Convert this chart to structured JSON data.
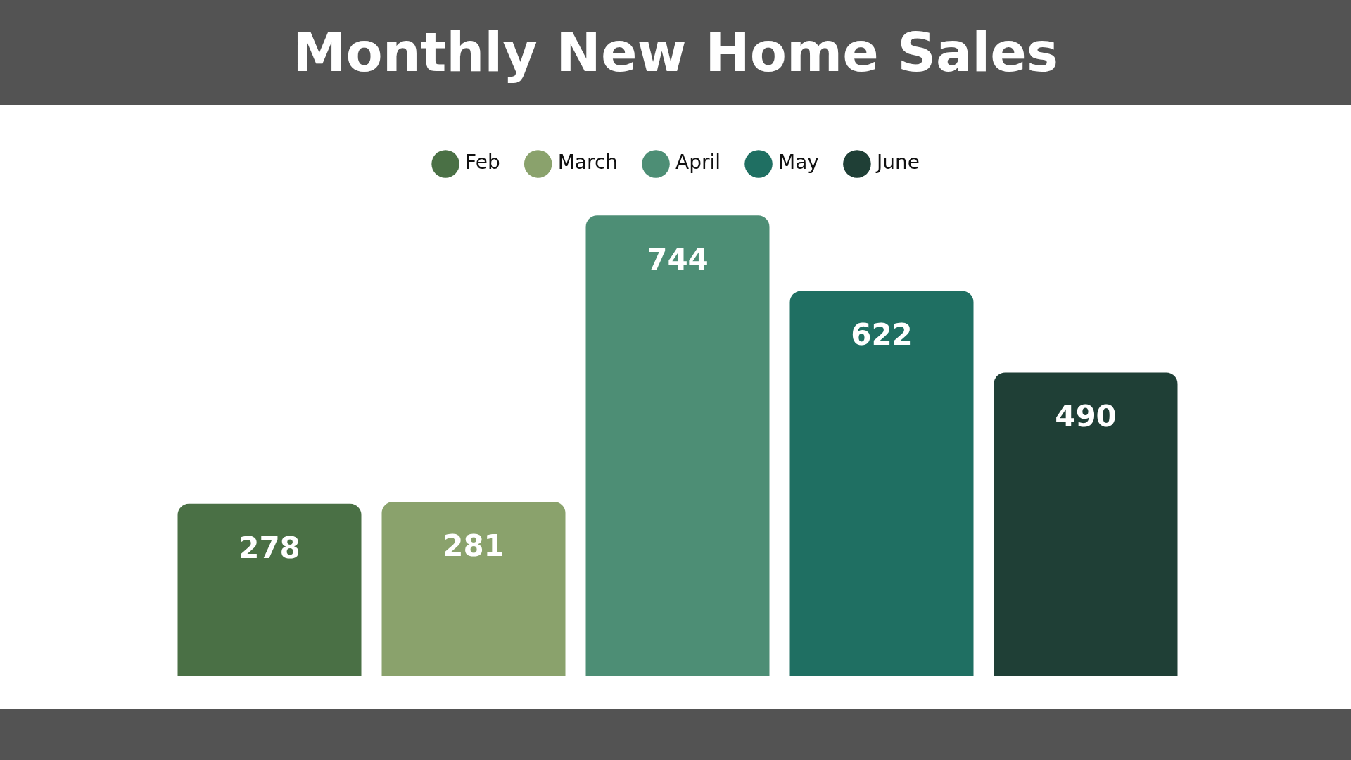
{
  "chart_data": {
    "type": "bar",
    "title": "Monthly New Home Sales",
    "categories": [
      null
    ],
    "series": [
      {
        "name": "Feb",
        "color": "#4a7045",
        "values": [
          278
        ]
      },
      {
        "name": "March",
        "color": "#8aa26c",
        "values": [
          281
        ]
      },
      {
        "name": "April",
        "color": "#4d8e75",
        "values": [
          744
        ]
      },
      {
        "name": "May",
        "color": "#1f6f62",
        "values": [
          622
        ]
      },
      {
        "name": "June",
        "color": "#1f3f36",
        "values": [
          490
        ]
      }
    ],
    "data_labels": true,
    "legend": "top"
  }
}
